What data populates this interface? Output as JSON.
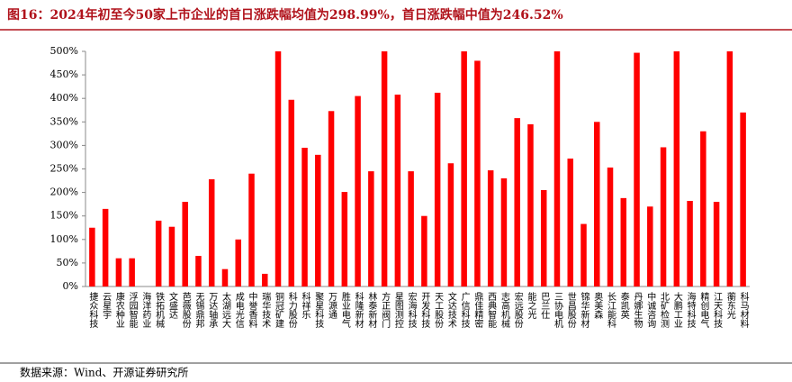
{
  "chart_data": {
    "type": "bar",
    "title": "图16：2024年初至今50家上市企业的首日涨跌幅均值为298.99%，首日涨跌幅中值为246.52%",
    "source": "数据来源：Wind、开源证券研究所",
    "categories": [
      "捷众科技",
      "云星宇",
      "康农种业",
      "浮园智能",
      "海洋药业",
      "铁拓机械",
      "文盛达",
      "芭薇股份",
      "无锡鼎邦",
      "万达轴承",
      "太湖远大",
      "成电光信",
      "中誉香料",
      "瑞华技术",
      "铜冠矿建",
      "科力股份",
      "科祥乐",
      "聚星科技",
      "万源通",
      "胜业电气",
      "科隆新材",
      "林泰新材",
      "方正阀门",
      "星图测控",
      "宏海科技",
      "开发科技",
      "天工股份",
      "文达技术",
      "广信科技",
      "鼎佳精密",
      "西典智能",
      "志高机械",
      "宏远股份",
      "能之光",
      "巴兰仕",
      "三协电机",
      "世昌股份",
      "锦华新材",
      "奥美森",
      "长江能科",
      "泰凯英",
      "丹娜生物",
      "中诚咨询",
      "北矿检测",
      "大鹏工业",
      "海特科技",
      "精创电气",
      "江天科技",
      "蘅东光",
      "科马材料"
    ],
    "values": [
      125,
      165,
      60,
      60,
      0,
      140,
      127,
      180,
      65,
      228,
      37,
      100,
      240,
      27,
      500,
      397,
      295,
      280,
      373,
      201,
      405,
      245,
      500,
      408,
      245,
      150,
      412,
      262,
      500,
      480,
      247,
      230,
      358,
      345,
      205,
      500,
      272,
      133,
      350,
      253,
      188,
      497,
      170,
      296,
      500,
      182,
      330,
      180,
      500,
      370
    ],
    "color": "#ff0000",
    "ylim": [
      0,
      500
    ],
    "yticks": [
      {
        "value": 0,
        "label": "0%"
      },
      {
        "value": 50,
        "label": "50%"
      },
      {
        "value": 100,
        "label": "100%"
      },
      {
        "value": 150,
        "label": "150%"
      },
      {
        "value": 200,
        "label": "200%"
      },
      {
        "value": 250,
        "label": "250%"
      },
      {
        "value": 300,
        "label": "300%"
      },
      {
        "value": 350,
        "label": "350%"
      },
      {
        "value": 400,
        "label": "400%"
      },
      {
        "value": 450,
        "label": "450%"
      },
      {
        "value": 500,
        "label": "500%"
      }
    ],
    "grid": false
  }
}
